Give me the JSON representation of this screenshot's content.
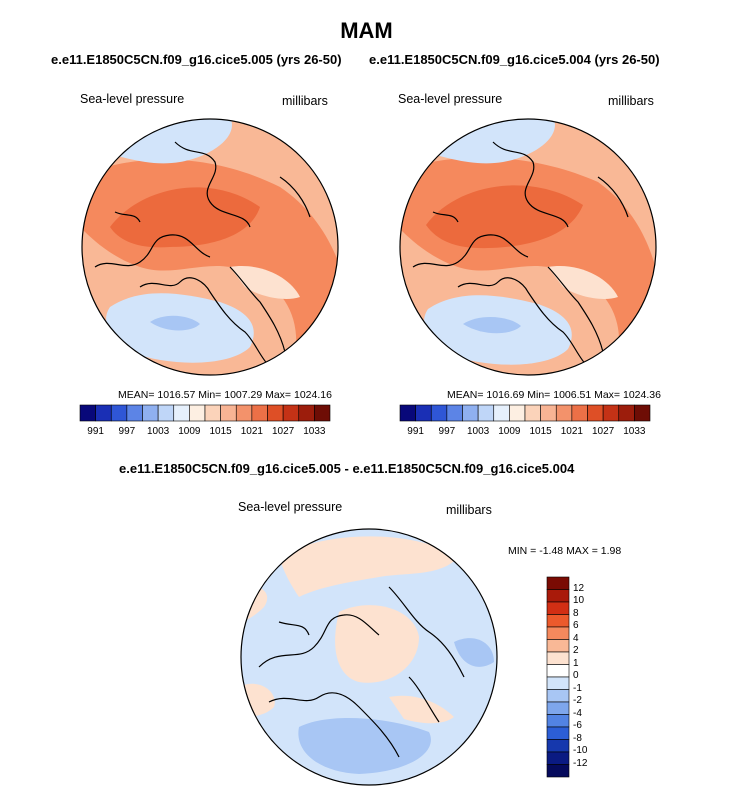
{
  "page_title": "MAM",
  "panels": [
    {
      "case": "e.e11.E1850C5CN.f09_g16.cice5.005 (yrs 26-50)",
      "variable_label": "Sea-level pressure",
      "units_label": "millibars",
      "stats": {
        "mean": "1016.57",
        "min": "1007.29",
        "max": "1024.16"
      },
      "stats_text": "MEAN= 1016.57  Min= 1007.29  Max= 1024.16"
    },
    {
      "case": "e.e11.E1850C5CN.f09_g16.cice5.004 (yrs 26-50)",
      "variable_label": "Sea-level pressure",
      "units_label": "millibars",
      "stats": {
        "mean": "1016.69",
        "min": "1006.51",
        "max": "1024.36"
      },
      "stats_text": "MEAN= 1016.69  Min= 1006.51  Max= 1024.36"
    }
  ],
  "abs_colorbar": {
    "tick_labels": [
      "991",
      "997",
      "1003",
      "1009",
      "1015",
      "1021",
      "1027",
      "1033"
    ],
    "colors": [
      "#08087a",
      "#1a2fb5",
      "#2f56d6",
      "#5c84e6",
      "#8fb0f0",
      "#bfd6f8",
      "#e6f0fc",
      "#fdefe2",
      "#fbd3ba",
      "#f8b494",
      "#f3926b",
      "#ec7047",
      "#de4f26",
      "#c43216",
      "#9c1d0c",
      "#6e0d05"
    ]
  },
  "diff": {
    "title": "e.e11.E1850C5CN.f09_g16.cice5.005 - e.e11.E1850C5CN.f09_g16.cice5.004",
    "variable_label": "Sea-level pressure",
    "units_label": "millibars",
    "minmax_text": "MIN =  -1.48 MAX =   1.98",
    "colorbar": {
      "tick_labels": [
        "12",
        "10",
        "8",
        "6",
        "4",
        "2",
        "1",
        "0",
        "-1",
        "-2",
        "-4",
        "-6",
        "-8",
        "-10",
        "-12"
      ],
      "colors": [
        "#7a0b03",
        "#a91a0a",
        "#d22f14",
        "#ec5a2c",
        "#f5895d",
        "#f9b896",
        "#fde2d0",
        "#ffffff",
        "#d2e4fa",
        "#a8c6f4",
        "#7ea6ec",
        "#5283e3",
        "#2c5ed6",
        "#1638ad",
        "#0a1a82",
        "#050a5c"
      ]
    }
  },
  "map_colors": {
    "orange_light": "#fde2d0",
    "orange": "#f9b896",
    "orange_mid": "#f5895d",
    "orange_dark": "#ec6a3d",
    "blue_light": "#d2e4fa",
    "blue": "#a8c6f4",
    "blue_mid": "#7ea6ec"
  }
}
